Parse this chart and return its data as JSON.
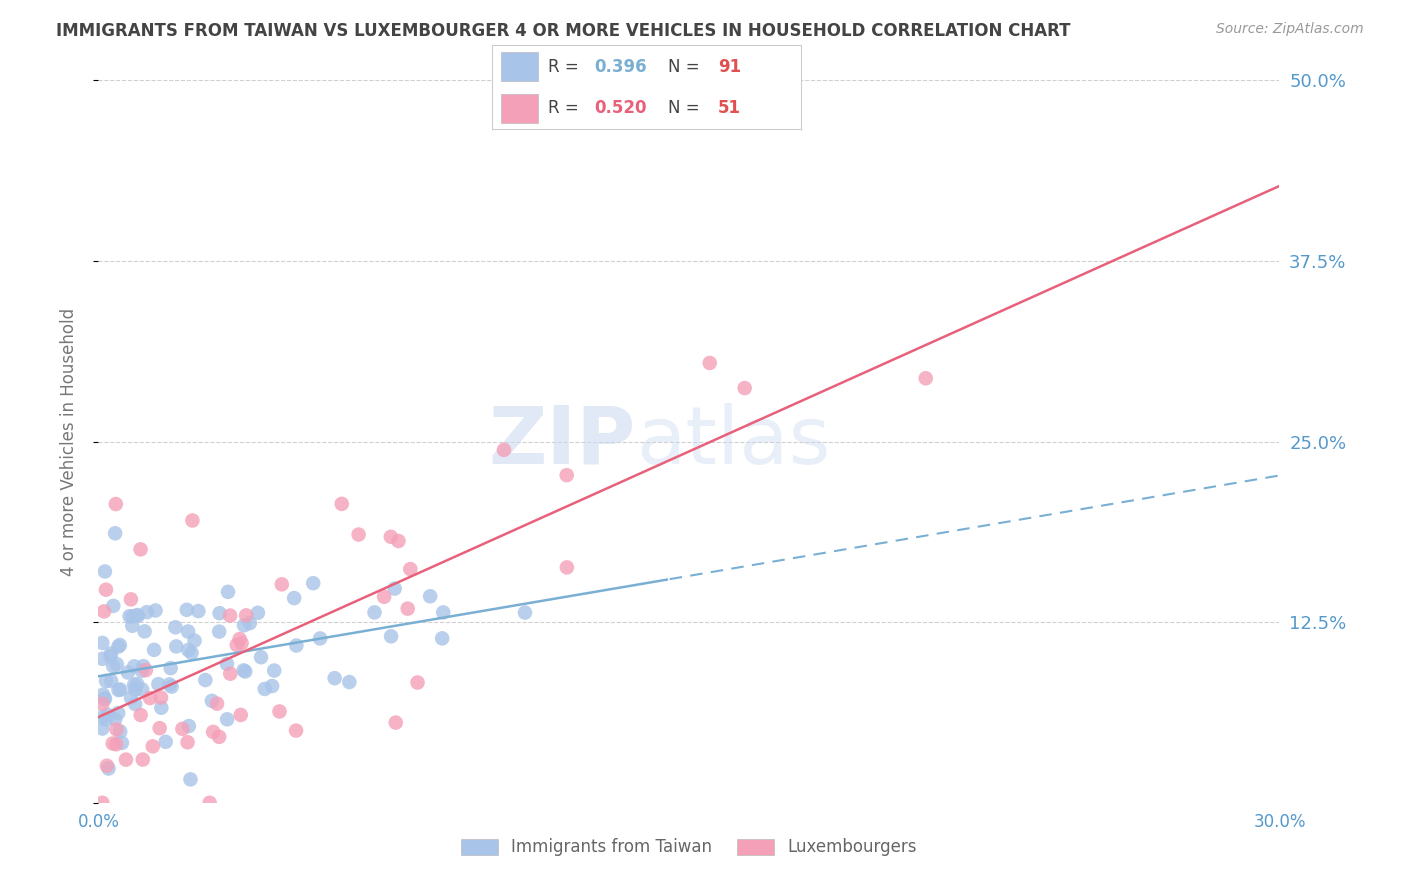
{
  "title": "IMMIGRANTS FROM TAIWAN VS LUXEMBOURGER 4 OR MORE VEHICLES IN HOUSEHOLD CORRELATION CHART",
  "source": "Source: ZipAtlas.com",
  "ylabel": "4 or more Vehicles in Household",
  "xmin": 0.0,
  "xmax": 0.3,
  "ymin": 0.0,
  "ymax": 0.5,
  "yticks": [
    0.0,
    0.125,
    0.25,
    0.375,
    0.5
  ],
  "ytick_labels": [
    "",
    "12.5%",
    "25.0%",
    "37.5%",
    "50.0%"
  ],
  "xticks": [
    0.0,
    0.05,
    0.1,
    0.15,
    0.2,
    0.25,
    0.3
  ],
  "xtick_labels": [
    "0.0%",
    "",
    "",
    "",
    "",
    "",
    "30.0%"
  ],
  "taiwan_R": 0.396,
  "taiwan_N": 91,
  "lux_R": 0.52,
  "lux_N": 51,
  "taiwan_color": "#a8c4e8",
  "lux_color": "#f4a0b8",
  "taiwan_line_color": "#7aafd4",
  "lux_line_color": "#e8607a",
  "taiwan_line_solid_end": 0.145,
  "legend_taiwan_label": "Immigrants from Taiwan",
  "legend_lux_label": "Luxembourgers",
  "watermark_zip": "ZIP",
  "watermark_atlas": "atlas",
  "background_color": "#ffffff",
  "grid_color": "#d0d0d0",
  "right_axis_color": "#5599cc",
  "title_color": "#444444",
  "source_color": "#999999",
  "taiwan_seed": 42,
  "lux_seed": 99,
  "tw_intercept": 0.083,
  "tw_slope": 0.55,
  "lux_intercept": 0.065,
  "lux_slope": 1.05
}
